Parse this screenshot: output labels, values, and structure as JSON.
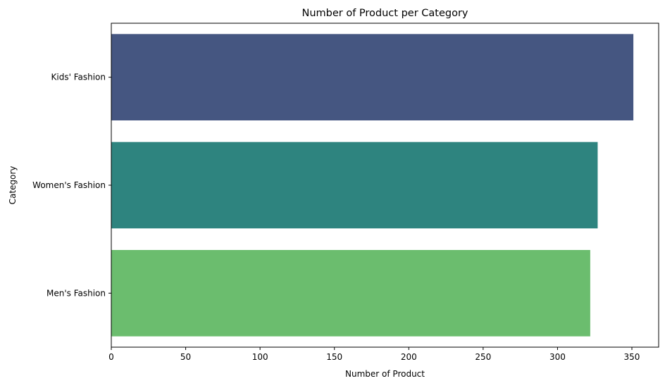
{
  "chart_data": {
    "type": "bar",
    "orientation": "horizontal",
    "title": "Number of Product per Category",
    "xlabel": "Number of Product",
    "ylabel": "Category",
    "categories": [
      "Kids' Fashion",
      "Women's Fashion",
      "Men's Fashion"
    ],
    "values": [
      351,
      327,
      322
    ],
    "colors": [
      "#455681",
      "#2e847f",
      "#6bbd6e"
    ],
    "xlim": [
      0,
      368
    ],
    "xticks": [
      0,
      50,
      100,
      150,
      200,
      250,
      300,
      350
    ],
    "grid": false,
    "legend": "none"
  }
}
